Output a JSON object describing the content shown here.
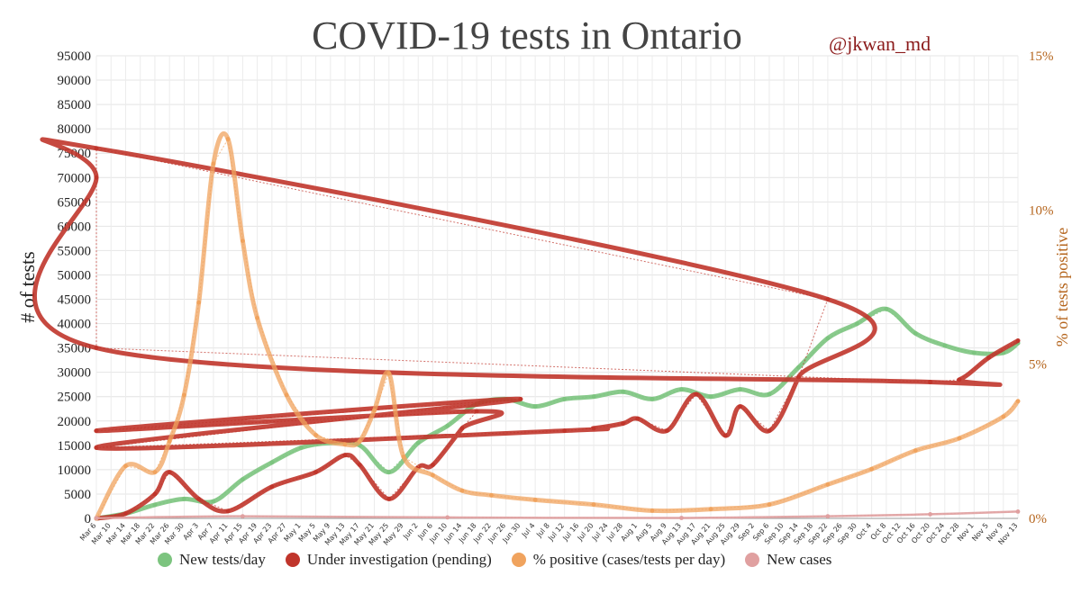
{
  "title": "COVID-19 tests in Ontario",
  "handle": "@jkwan_md",
  "legend": {
    "new_tests": "New tests/day",
    "pending": "Under investigation (pending)",
    "positive": "% positive (cases/tests per day)",
    "new_cases": "New cases"
  },
  "colors": {
    "new_tests": "#7cc47f",
    "pending": "#c0352b",
    "positive": "#f0a35e",
    "new_cases": "#e0a0a0",
    "right_axis": "#b5651d"
  },
  "chart_data": {
    "type": "line",
    "title": "COVID-19 tests in Ontario",
    "ylabel": "# of tests",
    "y2label": "% of tests positive",
    "ylim": [
      0,
      95000
    ],
    "y2lim": [
      0,
      15
    ],
    "yticks": [
      0,
      5000,
      10000,
      15000,
      20000,
      25000,
      30000,
      35000,
      40000,
      45000,
      50000,
      55000,
      60000,
      65000,
      70000,
      75000,
      80000,
      85000,
      90000,
      95000
    ],
    "y2ticks": [
      "0%",
      "5%",
      "10%",
      "15%"
    ],
    "grid": true,
    "legend_position": "bottom",
    "xticks": [
      "Mar 6",
      "Mar 10",
      "Mar 14",
      "Mar 18",
      "Mar 22",
      "Mar 26",
      "Mar 30",
      "Apr 3",
      "Apr 7",
      "Apr 11",
      "Apr 15",
      "Apr 19",
      "Apr 23",
      "Apr 27",
      "May 1",
      "May 5",
      "May 9",
      "May 13",
      "May 17",
      "May 21",
      "May 25",
      "May 29",
      "Jun 2",
      "Jun 6",
      "Jun 10",
      "Jun 14",
      "Jun 18",
      "Jun 22",
      "Jun 26",
      "Jun 30",
      "Jul 4",
      "Jul 8",
      "Jul 12",
      "Jul 16",
      "Jul 20",
      "Jul 24",
      "Jul 28",
      "Aug 1",
      "Aug 5",
      "Aug 9",
      "Aug 13",
      "Aug 17",
      "Aug 21",
      "Aug 25",
      "Aug 29",
      "Sep 2",
      "Sep 6",
      "Sep 10",
      "Sep 14",
      "Sep 18",
      "Sep 22",
      "Sep 26",
      "Sep 30",
      "Oct 4",
      "Oct 8",
      "Oct 12",
      "Oct 16",
      "Oct 20",
      "Oct 24",
      "Oct 28",
      "Nov 1",
      "Nov 5",
      "Nov 9",
      "Nov 13"
    ],
    "series": [
      {
        "name": "New tests/day",
        "axis": "left",
        "x": [
          "Mar 6",
          "Mar 14",
          "Mar 22",
          "Mar 30",
          "Apr 7",
          "Apr 15",
          "Apr 23",
          "May 1",
          "May 9",
          "May 17",
          "May 25",
          "Jun 2",
          "Jun 10",
          "Jun 18",
          "Jun 26",
          "Jul 4",
          "Jul 12",
          "Jul 20",
          "Jul 28",
          "Aug 5",
          "Aug 13",
          "Aug 21",
          "Aug 29",
          "Sep 6",
          "Sep 14",
          "Sep 22",
          "Sep 30",
          "Oct 8",
          "Oct 16",
          "Oct 24",
          "Nov 1",
          "Nov 9",
          "Nov 13"
        ],
        "values": [
          0,
          1000,
          2800,
          4000,
          3500,
          8000,
          11500,
          14500,
          15500,
          15000,
          9500,
          15500,
          19000,
          23500,
          24500,
          23000,
          24500,
          25000,
          26000,
          24500,
          26500,
          25000,
          26500,
          25500,
          31000,
          37000,
          40000,
          43000,
          38000,
          35500,
          34000,
          34000,
          36000
        ]
      },
      {
        "name": "Under investigation (pending)",
        "axis": "left",
        "x": [
          "Mar 6",
          "Mar 14",
          "Mar 22",
          "Mar 26",
          "Apr 3",
          "Apr 11",
          "Apr 23",
          "May 5",
          "May 13",
          "May 17",
          "May 25",
          "Jun 2",
          "Jun 6",
          "Jun 14",
          "Jun 18",
          "Jun 24",
          "Jun 30",
          "Jul 6",
          "Jul 12",
          "Jul 20",
          "Jul 28",
          "Aug 1",
          "Aug 9",
          "Aug 17",
          "Aug 25",
          "Aug 29",
          "Sep 6",
          "Sep 14",
          "Sep 22",
          "Oct 2",
          "Oct 6",
          "Oct 14",
          "Oct 20",
          "Oct 28",
          "Nov 5",
          "Nov 13"
        ],
        "values": [
          0,
          1000,
          5000,
          9500,
          4000,
          1500,
          6500,
          9500,
          13000,
          11000,
          4000,
          10500,
          11000,
          18500,
          22000,
          18000,
          24500,
          14500,
          18000,
          18500,
          19500,
          20500,
          18000,
          25500,
          17000,
          23000,
          18000,
          29000,
          45000,
          76000,
          70000,
          35000,
          28000,
          28500,
          33000,
          36500
        ]
      },
      {
        "name": "% positive (cases/tests per day)",
        "axis": "right",
        "x": [
          "Mar 6",
          "Mar 14",
          "Mar 22",
          "Mar 26",
          "Mar 30",
          "Apr 3",
          "Apr 7",
          "Apr 11",
          "Apr 15",
          "Apr 19",
          "Apr 27",
          "May 5",
          "May 13",
          "May 17",
          "May 21",
          "May 25",
          "May 29",
          "Jun 6",
          "Jun 14",
          "Jun 22",
          "Jul 4",
          "Jul 20",
          "Aug 5",
          "Aug 21",
          "Sep 6",
          "Sep 22",
          "Oct 4",
          "Oct 16",
          "Oct 28",
          "Nov 9",
          "Nov 13"
        ],
        "values": [
          0,
          1.7,
          1.5,
          2.5,
          4.0,
          7.0,
          11.5,
          12.3,
          9.0,
          6.5,
          4.0,
          2.7,
          2.4,
          2.5,
          3.5,
          4.7,
          2.0,
          1.4,
          0.9,
          0.75,
          0.6,
          0.45,
          0.25,
          0.3,
          0.45,
          1.1,
          1.6,
          2.2,
          2.6,
          3.3,
          3.8
        ]
      },
      {
        "name": "New cases",
        "axis": "left",
        "x": [
          "Mar 6",
          "Apr 15",
          "Jun 10",
          "Aug 13",
          "Sep 22",
          "Oct 20",
          "Nov 13"
        ],
        "values": [
          50,
          450,
          200,
          100,
          450,
          850,
          1400
        ]
      }
    ]
  }
}
